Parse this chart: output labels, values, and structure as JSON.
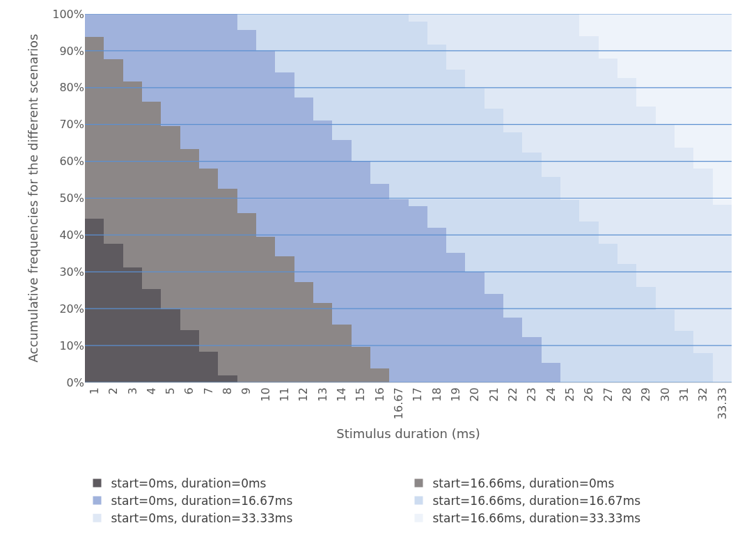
{
  "chart_data": {
    "type": "bar",
    "stacked": true,
    "xlabel": "Stimulus duration (ms)",
    "ylabel": "Accumulative frequencies for the different scenarios",
    "categories": [
      "1",
      "2",
      "3",
      "4",
      "5",
      "6",
      "7",
      "8",
      "9",
      "10",
      "11",
      "12",
      "13",
      "14",
      "15",
      "16",
      "16.67",
      "17",
      "18",
      "19",
      "20",
      "21",
      "22",
      "23",
      "24",
      "25",
      "26",
      "27",
      "28",
      "29",
      "30",
      "31",
      "32",
      "33.33"
    ],
    "series": [
      {
        "name": "start=0ms, duration=0ms",
        "color": "#5e5a5f",
        "values": [
          44.5,
          37.7,
          31.1,
          25.4,
          19.8,
          14.2,
          8.4,
          1.8,
          0,
          0,
          0,
          0,
          0,
          0,
          0,
          0,
          0,
          0,
          0,
          0,
          0,
          0,
          0,
          0,
          0,
          0,
          0,
          0,
          0,
          0,
          0,
          0,
          0,
          0
        ]
      },
      {
        "name": "start=16.66ms, duration=0ms",
        "color": "#8c8787",
        "values": [
          49.2,
          50.0,
          50.6,
          50.8,
          49.8,
          49.1,
          49.7,
          50.7,
          46.0,
          39.5,
          34.2,
          27.2,
          21.5,
          15.7,
          9.6,
          3.8,
          0,
          0,
          0,
          0,
          0,
          0,
          0,
          0,
          0,
          0,
          0,
          0,
          0,
          0,
          0,
          0,
          0,
          0
        ]
      },
      {
        "name": "start=0ms, duration=16.67ms",
        "color": "#a0b2dc",
        "values": [
          6.3,
          12.3,
          18.3,
          23.8,
          30.4,
          36.7,
          41.9,
          47.5,
          49.7,
          50.5,
          50.0,
          50.2,
          49.5,
          50.1,
          50.4,
          50.0,
          49.8,
          47.8,
          41.9,
          35.2,
          29.9,
          24.1,
          17.6,
          12.2,
          5.3,
          0,
          0,
          0,
          0,
          0,
          0,
          0,
          0,
          0
        ]
      },
      {
        "name": "start=16.66ms, duration=16.67ms",
        "color": "#cddcf0",
        "values": [
          0,
          0,
          0,
          0,
          0,
          0,
          0,
          0,
          4.3,
          10.0,
          15.8,
          22.6,
          29.0,
          34.2,
          40.0,
          46.2,
          50.2,
          50.1,
          49.8,
          49.7,
          49.8,
          50.1,
          50.2,
          50.1,
          50.5,
          49.5,
          43.7,
          37.7,
          32.1,
          25.9,
          19.6,
          14.0,
          8.0,
          0
        ]
      },
      {
        "name": "start=0ms, duration=33.33ms",
        "color": "#dfe8f5",
        "values": [
          0,
          0,
          0,
          0,
          0,
          0,
          0,
          0,
          0,
          0,
          0,
          0,
          0,
          0,
          0,
          0,
          0,
          2.1,
          8.3,
          15.1,
          20.3,
          25.8,
          32.2,
          37.7,
          44.2,
          50.5,
          50.3,
          50.2,
          50.6,
          49.0,
          50.6,
          49.8,
          50.1,
          48.2
        ]
      },
      {
        "name": "start=16.66ms, duration=33.33ms",
        "color": "#eef3fa",
        "values": [
          0,
          0,
          0,
          0,
          0,
          0,
          0,
          0,
          0,
          0,
          0,
          0,
          0,
          0,
          0,
          0,
          0,
          0,
          0,
          0,
          0,
          0,
          0,
          0,
          0,
          0,
          6.0,
          12.1,
          17.3,
          25.1,
          29.8,
          36.2,
          41.9,
          51.8
        ]
      }
    ],
    "ylim": [
      0,
      100
    ],
    "yticks": [
      {
        "value": 0,
        "label": "0%"
      },
      {
        "value": 10,
        "label": "10%"
      },
      {
        "value": 20,
        "label": "20%"
      },
      {
        "value": 30,
        "label": "30%"
      },
      {
        "value": 40,
        "label": "40%"
      },
      {
        "value": 50,
        "label": "50%"
      },
      {
        "value": 60,
        "label": "60%"
      },
      {
        "value": 70,
        "label": "70%"
      },
      {
        "value": 80,
        "label": "80%"
      },
      {
        "value": 90,
        "label": "90%"
      },
      {
        "value": 100,
        "label": "100%"
      }
    ],
    "grid": "y",
    "legend": "bottom"
  }
}
